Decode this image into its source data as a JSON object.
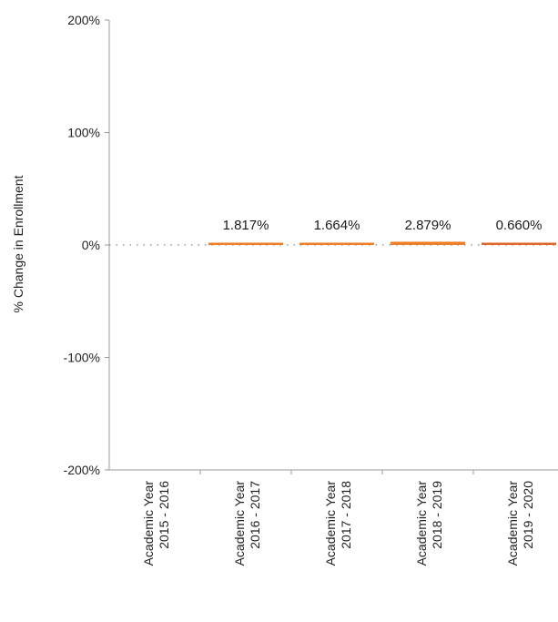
{
  "chart_data": {
    "type": "bar",
    "title": "",
    "xlabel": "",
    "ylabel": "% Change in Enrollment",
    "ylim": [
      -200,
      200
    ],
    "y_ticks": [
      200,
      100,
      0,
      -100,
      -200
    ],
    "y_tick_labels": [
      "200%",
      "100%",
      "0%",
      "-100%",
      "-200%"
    ],
    "categories": [
      [
        "Academic Year",
        "2015 - 2016"
      ],
      [
        "Academic Year",
        "2016 - 2017"
      ],
      [
        "Academic Year",
        "2017 - 2018"
      ],
      [
        "Academic Year",
        "2018 - 2019"
      ],
      [
        "Academic Year",
        "2019 - 2020"
      ]
    ],
    "values": [
      null,
      1.817,
      1.664,
      2.879,
      0.66
    ],
    "data_labels": [
      "",
      "1.817%",
      "1.664%",
      "2.879%",
      "0.660%"
    ],
    "zero_line": "dotted",
    "grid": false,
    "legend": "none",
    "colors": {
      "bar": "#f07f28",
      "bar_last": "#e0662a",
      "axis": "#9a9a9a",
      "zero_line": "#8a8a8a",
      "text": "#222222"
    }
  }
}
